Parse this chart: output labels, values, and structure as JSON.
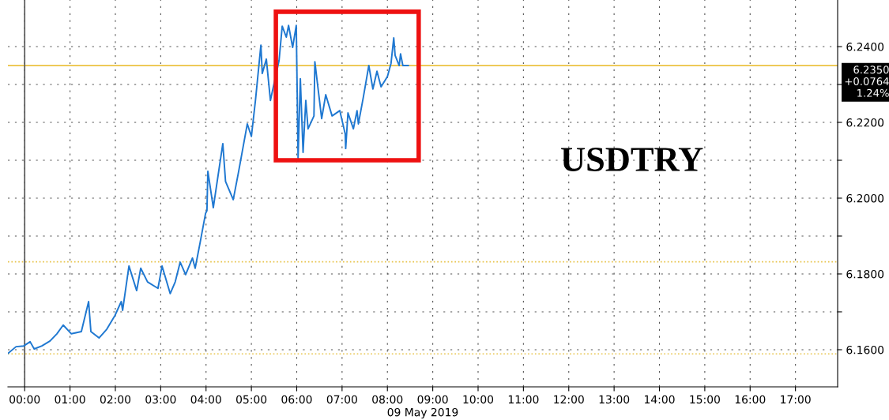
{
  "chart_data": {
    "type": "line",
    "title": "USDTRY",
    "xlabel": "09 May 2019",
    "xlim": [
      -0.37,
      17.93
    ],
    "ylim": [
      6.1502,
      6.2523
    ],
    "xticks": [
      {
        "value": 0,
        "label": "00:00"
      },
      {
        "value": 1,
        "label": "01:00"
      },
      {
        "value": 2,
        "label": "02:00"
      },
      {
        "value": 3,
        "label": "03:00"
      },
      {
        "value": 4,
        "label": "04:00"
      },
      {
        "value": 5,
        "label": "05:00"
      },
      {
        "value": 6,
        "label": "06:00"
      },
      {
        "value": 7,
        "label": "07:00"
      },
      {
        "value": 8,
        "label": "08:00"
      },
      {
        "value": 9,
        "label": "09:00"
      },
      {
        "value": 10,
        "label": "10:00"
      },
      {
        "value": 11,
        "label": "11:00"
      },
      {
        "value": 12,
        "label": "12:00"
      },
      {
        "value": 13,
        "label": "13:00"
      },
      {
        "value": 14,
        "label": "14:00"
      },
      {
        "value": 15,
        "label": "15:00"
      },
      {
        "value": 16,
        "label": "16:00"
      },
      {
        "value": 17,
        "label": "17:00"
      }
    ],
    "yticks": [
      {
        "value": 6.16,
        "label": "6.1600"
      },
      {
        "value": 6.17,
        "label": null
      },
      {
        "value": 6.18,
        "label": "6.1800"
      },
      {
        "value": 6.19,
        "label": null
      },
      {
        "value": 6.2,
        "label": "6.2000"
      },
      {
        "value": 6.21,
        "label": null
      },
      {
        "value": 6.22,
        "label": "6.2200"
      },
      {
        "value": 6.23,
        "label": null
      },
      {
        "value": 6.24,
        "label": "6.2400"
      }
    ],
    "grid": true,
    "ref_lines": [
      {
        "axis": "y",
        "value": 6.235,
        "label": "6.2350\n+0.0764\n1.24%",
        "color": "#e8b820",
        "line_style": "solid"
      },
      {
        "axis": "y",
        "value": 6.1832,
        "color": "#e8c34a",
        "line_style": "dotted"
      },
      {
        "axis": "y",
        "value": 6.1589,
        "color": "#e8c34a",
        "line_style": "dotted"
      },
      {
        "axis": "x",
        "value": 0,
        "color": "#555555",
        "line_style": "solid"
      }
    ],
    "series": [
      {
        "color": "#1f78d1",
        "x": [
          -0.37,
          -0.19,
          -0.02,
          0.12,
          0.21,
          0.38,
          0.56,
          0.71,
          0.85,
          1.03,
          1.25,
          1.41,
          1.46,
          1.64,
          1.81,
          1.99,
          2.13,
          2.16,
          2.3,
          2.47,
          2.56,
          2.71,
          2.94,
          3.03,
          3.21,
          3.32,
          3.43,
          3.55,
          3.7,
          3.76,
          3.87,
          3.99,
          4.02,
          4.04,
          4.16,
          4.37,
          4.43,
          4.6,
          4.72,
          4.91,
          5.0,
          5.09,
          5.21,
          5.24,
          5.33,
          5.42,
          5.51,
          5.61,
          5.68,
          5.77,
          5.82,
          5.91,
          5.99,
          6.03,
          6.08,
          6.14,
          6.2,
          6.25,
          6.38,
          6.4,
          6.46,
          6.55,
          6.64,
          6.78,
          6.95,
          7.07,
          7.08,
          7.13,
          7.25,
          7.33,
          7.36,
          7.47,
          7.59,
          7.68,
          7.77,
          7.86,
          8.0,
          8.08,
          8.14,
          8.17,
          8.26,
          8.29,
          8.34,
          8.46
        ],
        "values": [
          6.159,
          6.1608,
          6.161,
          6.1621,
          6.1602,
          6.161,
          6.1623,
          6.1642,
          6.1665,
          6.1642,
          6.1648,
          6.1727,
          6.1648,
          6.1631,
          6.1654,
          6.169,
          6.1727,
          6.1704,
          6.1821,
          6.1756,
          6.1815,
          6.1779,
          6.1762,
          6.1821,
          6.1748,
          6.1779,
          6.1831,
          6.1798,
          6.1842,
          6.1815,
          6.1883,
          6.196,
          6.1967,
          6.2071,
          6.1975,
          6.2144,
          6.2044,
          6.1996,
          6.2071,
          6.2196,
          6.2163,
          6.2258,
          6.2404,
          6.2329,
          6.2367,
          6.2258,
          6.2308,
          6.2363,
          6.2454,
          6.2425,
          6.2456,
          6.2398,
          6.2456,
          6.2106,
          6.2315,
          6.2121,
          6.2258,
          6.2183,
          6.2217,
          6.236,
          6.23,
          6.221,
          6.2273,
          6.2217,
          6.2231,
          6.2169,
          6.2131,
          6.2225,
          6.2183,
          6.2231,
          6.2196,
          6.2267,
          6.235,
          6.2288,
          6.2335,
          6.2294,
          6.2321,
          6.2356,
          6.2423,
          6.2377,
          6.235,
          6.2381,
          6.235,
          6.235
        ]
      }
    ]
  }
}
